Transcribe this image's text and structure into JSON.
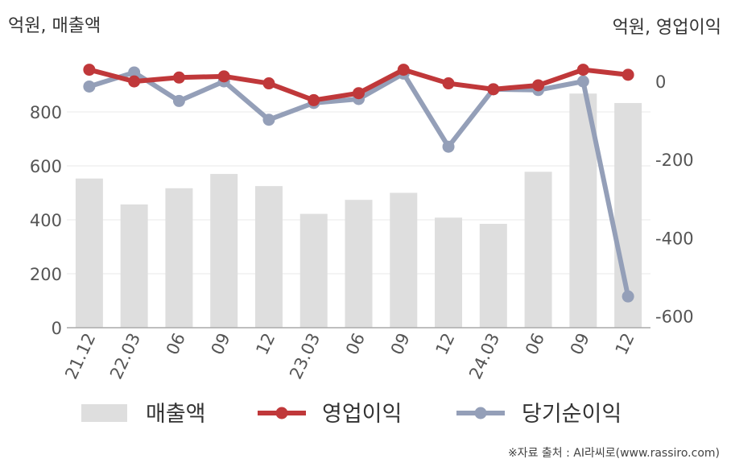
{
  "unit_left": "억원, 매출액",
  "unit_right": "억원, 영업이익",
  "source": "※자료 출처 : AI라씨로(www.rassiro.com)",
  "colors": {
    "bar": "#dedede",
    "operating": "#c0383a",
    "net": "#949fb8",
    "grid": "#e8e8e8",
    "axis": "#aaaaaa"
  },
  "chart_data": {
    "type": "bar+line",
    "categories": [
      "21.12",
      "22.03",
      "06",
      "09",
      "12",
      "23.03",
      "06",
      "09",
      "12",
      "24.03",
      "06",
      "09",
      "12"
    ],
    "left_axis": {
      "ylim": [
        0,
        1000
      ],
      "ticks": [
        0,
        200,
        400,
        600,
        800
      ]
    },
    "right_axis": {
      "ylim": [
        -630,
        60
      ],
      "ticks": [
        0,
        -200,
        -400,
        -600
      ]
    },
    "series": [
      {
        "name": "매출액",
        "type": "bar",
        "axis": "left",
        "values": [
          553,
          457,
          517,
          570,
          525,
          422,
          474,
          500,
          408,
          385,
          578,
          868,
          833
        ]
      },
      {
        "name": "영업이익",
        "type": "line",
        "axis": "right",
        "values": [
          30,
          0,
          10,
          13,
          -5,
          -48,
          -30,
          30,
          -5,
          -20,
          -10,
          30,
          17
        ]
      },
      {
        "name": "당기순이익",
        "type": "line",
        "axis": "right",
        "values": [
          -13,
          23,
          -50,
          0,
          -98,
          -55,
          -45,
          20,
          -167,
          -20,
          -22,
          0,
          -550
        ]
      }
    ]
  }
}
